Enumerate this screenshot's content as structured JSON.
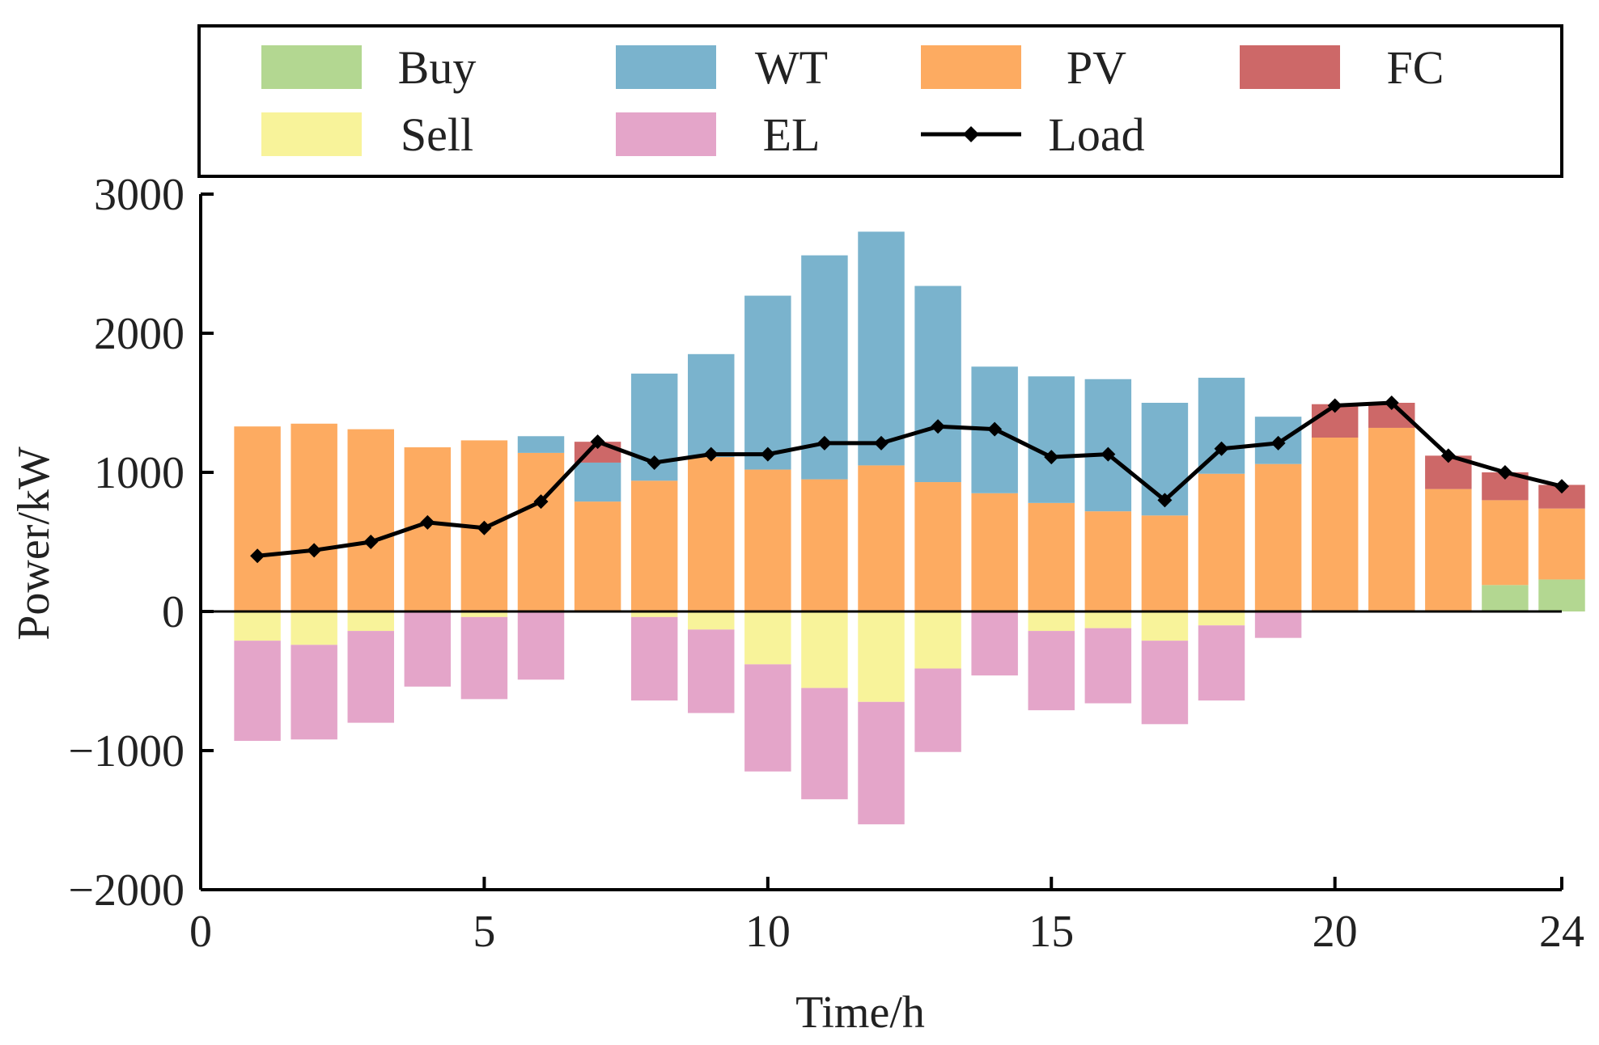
{
  "chart_data": {
    "type": "bar",
    "stacked": true,
    "title": "",
    "xlabel": "Time/h",
    "ylabel": "Power/kW",
    "xlim": [
      0,
      24
    ],
    "ylim": [
      -2000,
      3000
    ],
    "xticks": [
      0,
      5,
      10,
      15,
      20,
      24
    ],
    "yticks": [
      -2000,
      -1000,
      0,
      1000,
      2000,
      3000
    ],
    "x": [
      1,
      2,
      3,
      4,
      5,
      6,
      7,
      8,
      9,
      10,
      11,
      12,
      13,
      14,
      15,
      16,
      17,
      18,
      19,
      20,
      21,
      22,
      23,
      24
    ],
    "series": [
      {
        "name": "Buy",
        "color": "#b3d791",
        "values": [
          0,
          0,
          0,
          0,
          0,
          0,
          0,
          0,
          0,
          0,
          0,
          0,
          0,
          0,
          0,
          0,
          0,
          0,
          0,
          0,
          0,
          0,
          190,
          230
        ]
      },
      {
        "name": "PV",
        "color": "#fdab61",
        "values": [
          1330,
          1350,
          1310,
          1180,
          1230,
          1140,
          790,
          940,
          1110,
          1020,
          950,
          1050,
          930,
          850,
          780,
          720,
          690,
          990,
          1060,
          1250,
          1320,
          880,
          610,
          510
        ]
      },
      {
        "name": "WT",
        "color": "#7ab3cd",
        "values": [
          0,
          0,
          0,
          0,
          0,
          120,
          280,
          770,
          740,
          1250,
          1610,
          1680,
          1410,
          910,
          910,
          950,
          810,
          690,
          340,
          0,
          0,
          0,
          0,
          0
        ]
      },
      {
        "name": "FC",
        "color": "#cd6868",
        "values": [
          0,
          0,
          0,
          0,
          0,
          0,
          150,
          0,
          0,
          0,
          0,
          0,
          0,
          0,
          0,
          0,
          0,
          0,
          0,
          240,
          180,
          240,
          200,
          170
        ]
      },
      {
        "name": "Sell",
        "color": "#f8f39a",
        "values": [
          -210,
          -240,
          -140,
          0,
          -40,
          0,
          0,
          -40,
          -130,
          -380,
          -550,
          -650,
          -410,
          0,
          -140,
          -120,
          -210,
          -100,
          0,
          0,
          0,
          0,
          0,
          0
        ]
      },
      {
        "name": "EL",
        "color": "#e4a5c9",
        "values": [
          -720,
          -680,
          -660,
          -540,
          -590,
          -490,
          0,
          -600,
          -600,
          -770,
          -800,
          -880,
          -600,
          -460,
          -570,
          -540,
          -600,
          -540,
          -190,
          0,
          0,
          0,
          0,
          0
        ]
      }
    ],
    "load": {
      "name": "Load",
      "color": "#000000",
      "values": [
        400,
        440,
        500,
        640,
        600,
        790,
        1220,
        1070,
        1130,
        1130,
        1210,
        1210,
        1330,
        1310,
        1110,
        1130,
        800,
        1170,
        1210,
        1480,
        1500,
        1120,
        1000,
        900
      ]
    },
    "legend": {
      "position": "top",
      "items": [
        {
          "label": "Buy",
          "kind": "patch",
          "color": "#b3d791"
        },
        {
          "label": "WT",
          "kind": "patch",
          "color": "#7ab3cd"
        },
        {
          "label": "PV",
          "kind": "patch",
          "color": "#fdab61"
        },
        {
          "label": "FC",
          "kind": "patch",
          "color": "#cd6868"
        },
        {
          "label": "Sell",
          "kind": "patch",
          "color": "#f8f39a"
        },
        {
          "label": "EL",
          "kind": "patch",
          "color": "#e4a5c9"
        },
        {
          "label": "Load",
          "kind": "line",
          "color": "#000000"
        }
      ]
    }
  }
}
